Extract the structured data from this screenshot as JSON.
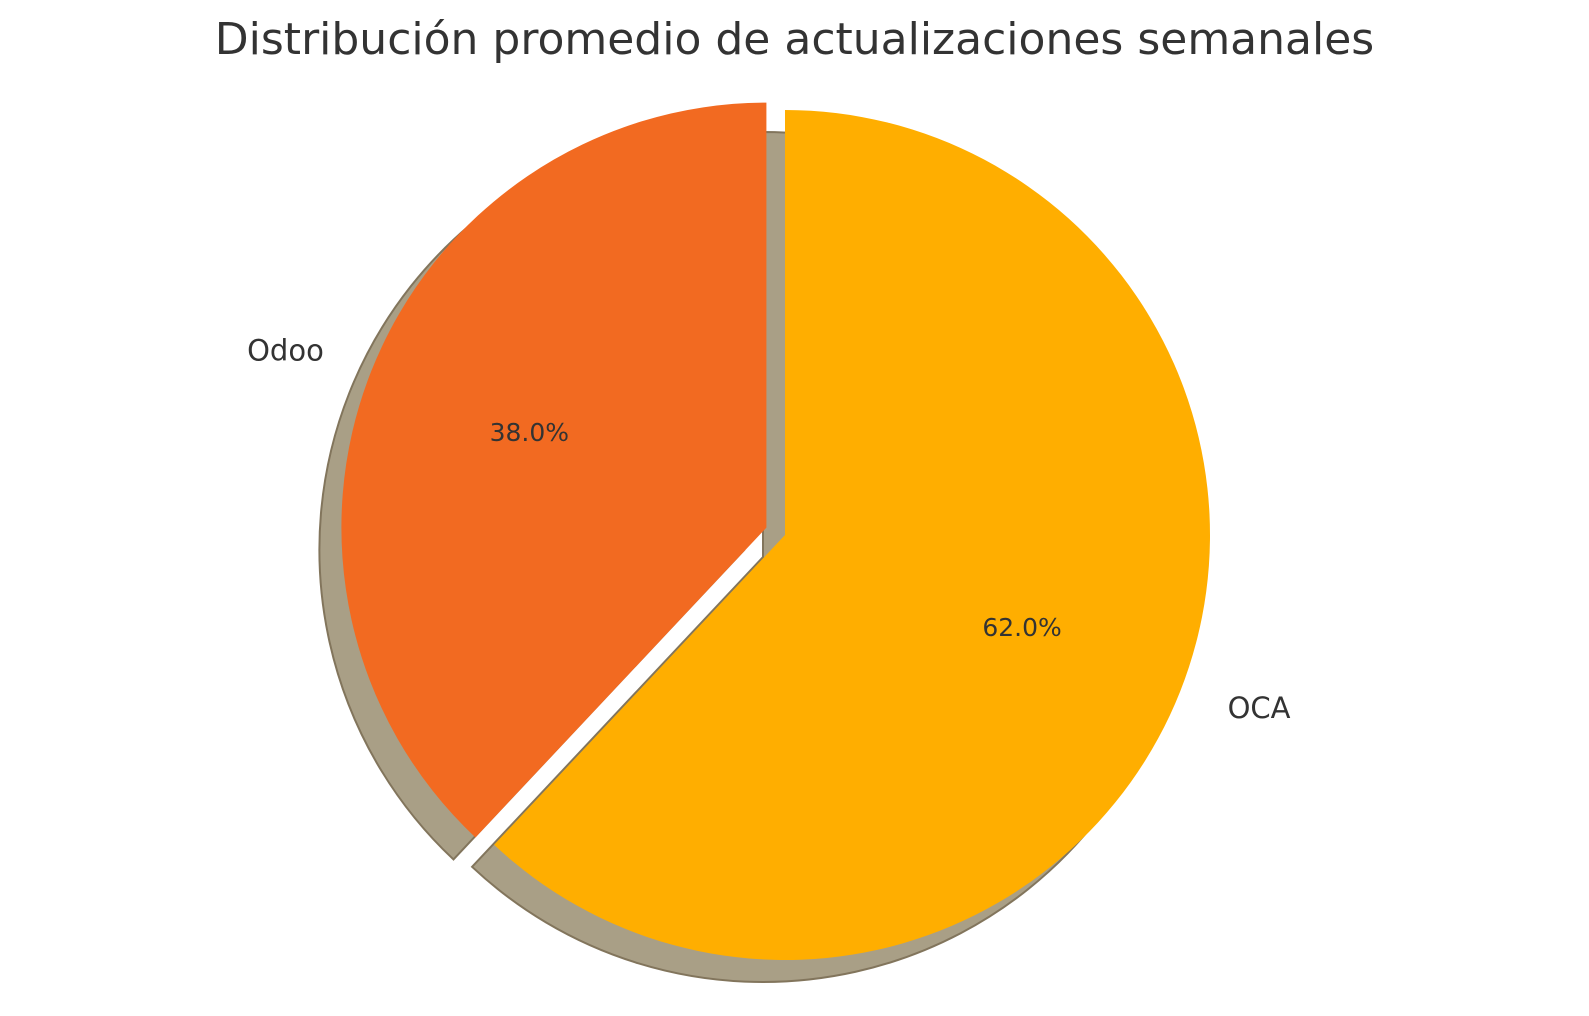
{
  "chart_data": {
    "type": "pie",
    "title": "Distribución promedio de actualizaciones semanales",
    "labels": [
      "OCA",
      "Odoo"
    ],
    "values": [
      62.0,
      38.0
    ],
    "percent_labels": [
      "62.0%",
      "38.0%"
    ],
    "colors": [
      "#FFAE00",
      "#F26A21"
    ],
    "exploded": [
      false,
      true
    ],
    "shadow": true,
    "start_angle": 90,
    "direction": "clockwise"
  }
}
